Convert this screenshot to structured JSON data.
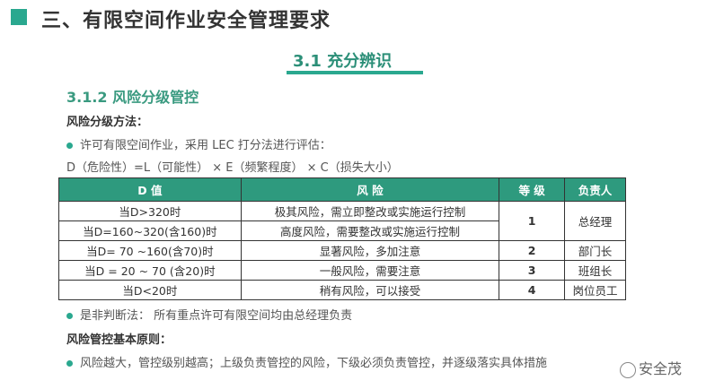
{
  "header": {
    "title": "三、有限空间作业安全管理要求",
    "section": "3.1  充分辨识",
    "subsection": "3.1.2  风险分级管控"
  },
  "colors": {
    "accent": "#2aa88f",
    "table_header": "#2e9a7e"
  },
  "method": {
    "heading": "风险分级方法：",
    "bullet1": "许可有限空间作业，采用  LEC 打分法进行评估：",
    "formula": "D（危险性）=L（可能性） ×  E（频繁程度）   × C（损失大小）"
  },
  "table": {
    "headers": [
      "D 值",
      "风  险",
      "等  级",
      "负责人"
    ],
    "rows": [
      {
        "d": "当D>320时",
        "risk": "极其风险，需立即整改或实施运行控制"
      },
      {
        "d": "当D=160~320(含160)时",
        "risk": "高度风险，需要整改或实施运行控制"
      },
      {
        "d": "当D= 70 ~160(含70)时",
        "risk": "显著风险，多加注意",
        "level": "2",
        "owner": "部门长"
      },
      {
        "d": "当D = 20 ~ 70 (含20)时",
        "risk": "一般风险，需要注意",
        "level": "3",
        "owner": "班组长"
      },
      {
        "d": "当D<20时",
        "risk": "稍有风险，可以接受",
        "level": "4",
        "owner": "岗位员工"
      }
    ],
    "merged_level": "1",
    "merged_owner": "总经理"
  },
  "judgement": "是非判断法：  所有重点许可有限空间均由总经理负责",
  "principle": {
    "heading": "风险管控基本原则：",
    "bullet": "风险越大，管控级别越高；上级负责管控的风险，下级必须负责管控，并逐级落实具体措施"
  },
  "watermark": "安全茂"
}
